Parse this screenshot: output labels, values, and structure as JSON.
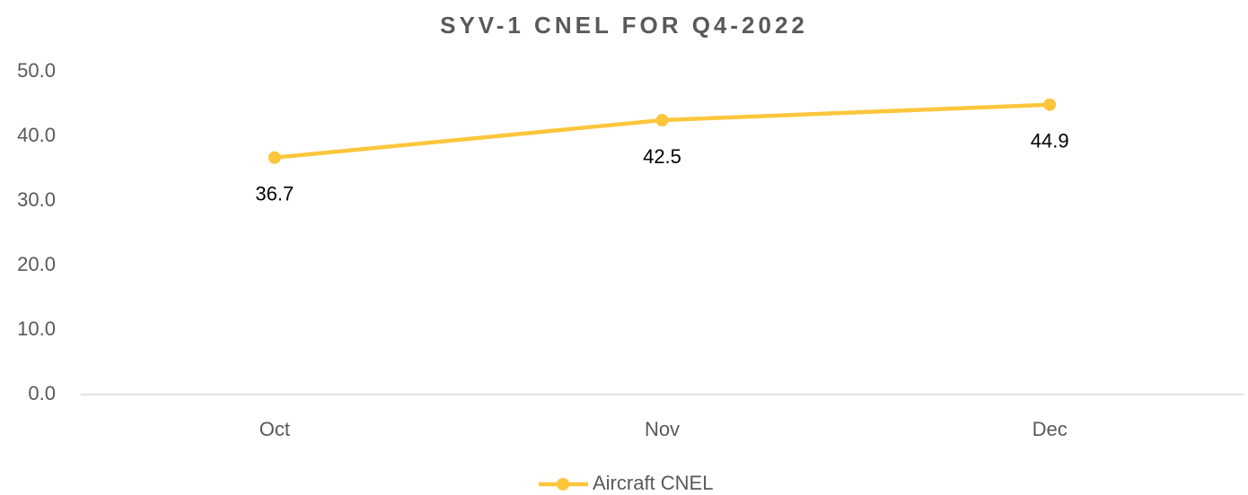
{
  "chart_data": {
    "type": "line",
    "title": "SYV-1 CNEL FOR Q4-2022",
    "categories": [
      "Oct",
      "Nov",
      "Dec"
    ],
    "series": [
      {
        "name": "Aircraft CNEL",
        "color": "#fcc63c",
        "values": [
          36.7,
          42.5,
          44.9
        ]
      }
    ],
    "ylim": [
      0,
      50
    ],
    "yticks": [
      {
        "value": 0,
        "label": "0.0"
      },
      {
        "value": 10,
        "label": "10.0"
      },
      {
        "value": 20,
        "label": "20.0"
      },
      {
        "value": 30,
        "label": "30.0"
      },
      {
        "value": 40,
        "label": "40.0"
      },
      {
        "value": 50,
        "label": "50.0"
      }
    ],
    "grid": false,
    "legend": "bottom"
  }
}
